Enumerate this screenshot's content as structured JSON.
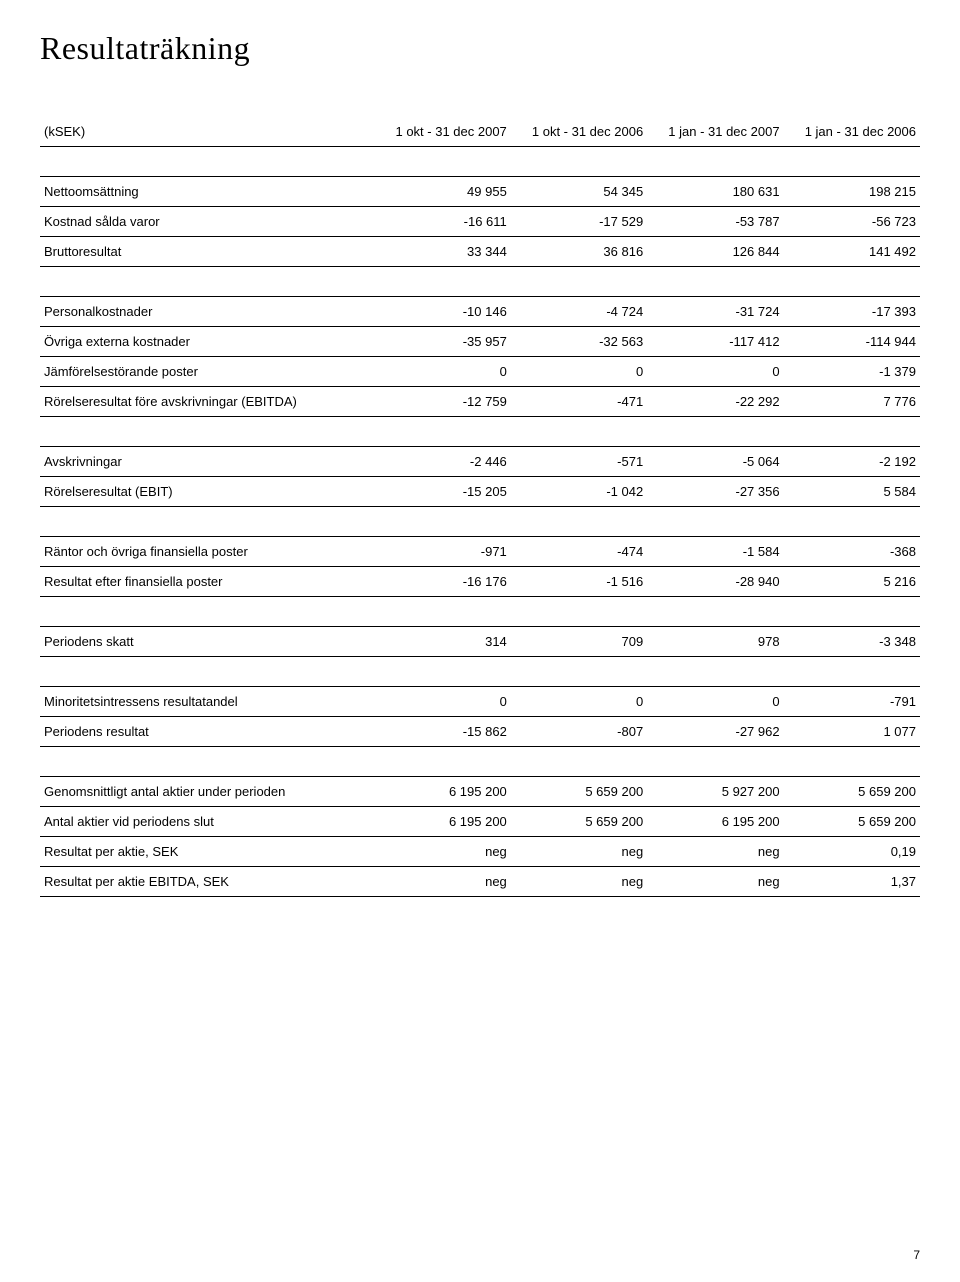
{
  "title": "Resultaträkning",
  "page_number": "7",
  "table": {
    "header": {
      "label": "(kSEK)",
      "columns": [
        "1 okt - 31 dec 2007",
        "1 okt - 31 dec 2006",
        "1 jan - 31 dec 2007",
        "1 jan - 31 dec 2006"
      ]
    },
    "sections": [
      {
        "rows": [
          {
            "label": "Nettoomsättning",
            "values": [
              "49 955",
              "54 345",
              "180 631",
              "198 215"
            ]
          },
          {
            "label": "Kostnad sålda varor",
            "values": [
              "-16 611",
              "-17 529",
              "-53 787",
              "-56 723"
            ]
          },
          {
            "label": "Bruttoresultat",
            "values": [
              "33 344",
              "36 816",
              "126 844",
              "141 492"
            ]
          }
        ]
      },
      {
        "rows": [
          {
            "label": "Personalkostnader",
            "values": [
              "-10 146",
              "-4 724",
              "-31 724",
              "-17 393"
            ]
          },
          {
            "label": "Övriga externa kostnader",
            "values": [
              "-35 957",
              "-32 563",
              "-117 412",
              "-114 944"
            ]
          },
          {
            "label": "Jämförelsestörande poster",
            "values": [
              "0",
              "0",
              "0",
              "-1 379"
            ]
          },
          {
            "label": "Rörelseresultat före avskrivningar (EBITDA)",
            "values": [
              "-12 759",
              "-471",
              "-22 292",
              "7 776"
            ]
          }
        ]
      },
      {
        "rows": [
          {
            "label": "Avskrivningar",
            "values": [
              "-2 446",
              "-571",
              "-5 064",
              "-2 192"
            ]
          },
          {
            "label": "Rörelseresultat (EBIT)",
            "values": [
              "-15 205",
              "-1 042",
              "-27 356",
              "5 584"
            ]
          }
        ]
      },
      {
        "rows": [
          {
            "label": "Räntor och övriga finansiella poster",
            "values": [
              "-971",
              "-474",
              "-1 584",
              "-368"
            ]
          },
          {
            "label": "Resultat efter finansiella poster",
            "values": [
              "-16 176",
              "-1 516",
              "-28 940",
              "5 216"
            ]
          }
        ]
      },
      {
        "rows": [
          {
            "label": "Periodens skatt",
            "values": [
              "314",
              "709",
              "978",
              "-3 348"
            ]
          }
        ]
      },
      {
        "rows": [
          {
            "label": "Minoritetsintressens resultatandel",
            "values": [
              "0",
              "0",
              "0",
              "-791"
            ]
          },
          {
            "label": "Periodens resultat",
            "values": [
              "-15 862",
              "-807",
              "-27 962",
              "1 077"
            ]
          }
        ]
      },
      {
        "rows": [
          {
            "label": "Genomsnittligt antal aktier under perioden",
            "values": [
              "6 195 200",
              "5 659 200",
              "5 927 200",
              "5 659 200"
            ]
          },
          {
            "label": "Antal aktier vid periodens slut",
            "values": [
              "6 195 200",
              "5 659 200",
              "6 195 200",
              "5 659 200"
            ]
          },
          {
            "label": "Resultat per aktie, SEK",
            "values": [
              "neg",
              "neg",
              "neg",
              "0,19"
            ]
          },
          {
            "label": "Resultat per aktie EBITDA, SEK",
            "values": [
              "neg",
              "neg",
              "neg",
              "1,37"
            ]
          }
        ]
      }
    ]
  },
  "style": {
    "background_color": "#ffffff",
    "text_color": "#000000",
    "title_fontsize": 32,
    "body_fontsize": 13,
    "rule_color": "#000000"
  }
}
